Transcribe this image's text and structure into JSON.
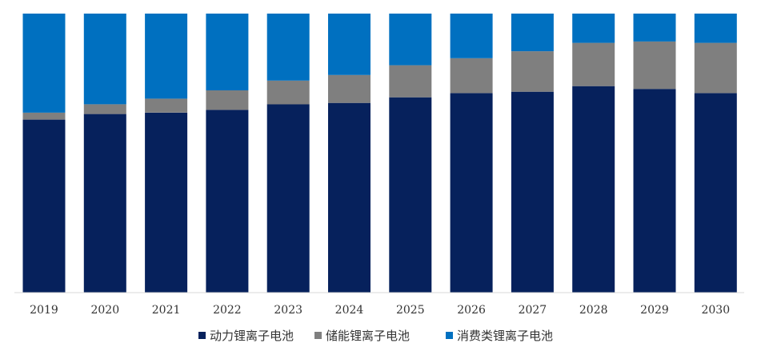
{
  "chart_data": {
    "type": "bar",
    "stacked": true,
    "normalized": true,
    "categories": [
      "2019",
      "2020",
      "2021",
      "2022",
      "2023",
      "2024",
      "2025",
      "2026",
      "2027",
      "2028",
      "2029",
      "2030"
    ],
    "series": [
      {
        "name": "动力锂离子电池",
        "color": "#06215C",
        "values": [
          62,
          64,
          64.5,
          65.5,
          67.5,
          68,
          70,
          71.5,
          72,
          74,
          73,
          71.5
        ]
      },
      {
        "name": "储能锂离子电池",
        "color": "#7F7F7F",
        "values": [
          2.5,
          3.5,
          5,
          7,
          8.5,
          10,
          11.5,
          12.5,
          14.5,
          15.5,
          17,
          18
        ]
      },
      {
        "name": "消费类锂离子电池",
        "color": "#0070C0",
        "values": [
          35.5,
          32.5,
          30.5,
          27.5,
          24,
          22,
          18.5,
          16,
          13.5,
          10.5,
          10,
          10.5
        ]
      }
    ],
    "ylim": [
      0,
      100
    ],
    "grid": false,
    "legend": "bottom"
  }
}
